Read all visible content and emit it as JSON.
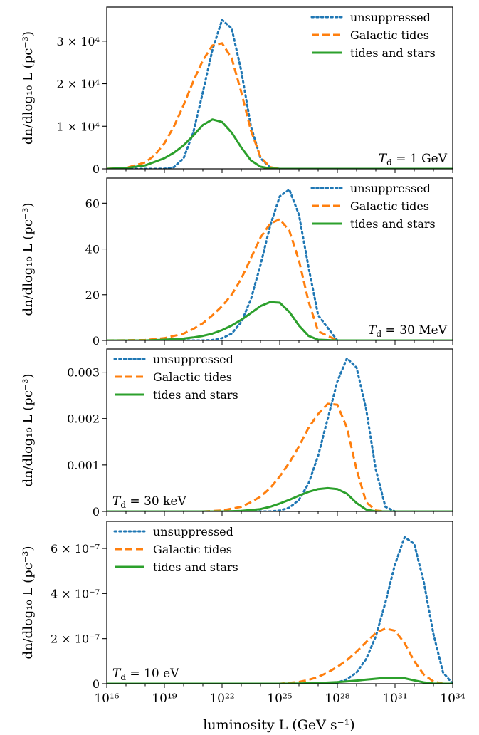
{
  "figure": {
    "xlabel": "luminosity L (GeV s⁻¹)",
    "xscale": "log",
    "xlim_log10": [
      16,
      34
    ],
    "x_ticks": [
      {
        "log10": 16,
        "label": "10¹⁶"
      },
      {
        "log10": 19,
        "label": "10¹⁹"
      },
      {
        "log10": 22,
        "label": "10²²"
      },
      {
        "log10": 25,
        "label": "10²⁵"
      },
      {
        "log10": 28,
        "label": "10²⁸"
      },
      {
        "log10": 31,
        "label": "10³¹"
      },
      {
        "log10": 34,
        "label": "10³⁴"
      }
    ],
    "series_styles": [
      {
        "name": "unsuppressed",
        "color": "#1f77b4",
        "style": "dotted"
      },
      {
        "name": "Galactic tides",
        "color": "#ff7f0e",
        "style": "dashed"
      },
      {
        "name": "tides and stars",
        "color": "#2ca02c",
        "style": "solid"
      }
    ]
  },
  "chart_data": [
    {
      "type": "line",
      "ylabel": "dn/dlog₁₀ L (pc⁻³)",
      "ylim": [
        0,
        38000
      ],
      "y_ticks": [
        {
          "value": 0,
          "label": "0"
        },
        {
          "value": 10000,
          "label": "1 × 10⁴"
        },
        {
          "value": 20000,
          "label": "2 × 10⁴"
        },
        {
          "value": 30000,
          "label": "3 × 10⁴"
        }
      ],
      "legend_position": "top-right",
      "annotation": "T_d = 1 GeV",
      "annotation_position": "bottom-right",
      "series": [
        {
          "name": "unsuppressed",
          "x_log10": [
            16,
            18,
            19,
            19.5,
            20,
            20.5,
            21,
            21.5,
            22,
            22.5,
            23,
            23.5,
            24,
            24.5,
            25,
            26,
            30,
            34
          ],
          "values": [
            0,
            0,
            20,
            400,
            2500,
            8500,
            18000,
            28000,
            35000,
            33000,
            23000,
            10000,
            2500,
            300,
            0,
            0,
            0,
            0
          ]
        },
        {
          "name": "Galactic tides",
          "x_log10": [
            16,
            17,
            18,
            18.5,
            19,
            19.5,
            20,
            20.5,
            21,
            21.5,
            22,
            22.5,
            23,
            23.5,
            24,
            24.5,
            25,
            26,
            30,
            34
          ],
          "values": [
            0,
            200,
            1500,
            3200,
            6000,
            10000,
            15000,
            20500,
            25500,
            29000,
            29500,
            26000,
            18000,
            9000,
            2800,
            400,
            0,
            0,
            0,
            0
          ]
        },
        {
          "name": "tides and stars",
          "x_log10": [
            16,
            17,
            18,
            19,
            19.5,
            20,
            20.5,
            21,
            21.5,
            22,
            22.5,
            23,
            23.5,
            24,
            24.5,
            25,
            26,
            30,
            34
          ],
          "values": [
            0,
            200,
            800,
            2500,
            3800,
            5500,
            7800,
            10300,
            11600,
            11000,
            8500,
            5000,
            2000,
            500,
            80,
            0,
            0,
            0,
            0
          ]
        }
      ]
    },
    {
      "type": "line",
      "ylabel": "dn/dlog₁₀ L (pc⁻³)",
      "ylim": [
        0,
        71
      ],
      "y_ticks": [
        {
          "value": 0,
          "label": "0"
        },
        {
          "value": 20,
          "label": "20"
        },
        {
          "value": 40,
          "label": "40"
        },
        {
          "value": 60,
          "label": "60"
        }
      ],
      "legend_position": "top-right",
      "annotation": "T_d = 30 MeV",
      "annotation_position": "bottom-right",
      "series": [
        {
          "name": "unsuppressed",
          "x_log10": [
            16,
            20,
            21,
            21.5,
            22,
            22.5,
            23,
            23.5,
            24,
            24.5,
            25,
            25.5,
            26,
            26.5,
            27,
            28,
            34
          ],
          "values": [
            0,
            0,
            0,
            0.2,
            1,
            3,
            8,
            18,
            33,
            50,
            63,
            66,
            55,
            32,
            11,
            0,
            0
          ]
        },
        {
          "name": "Galactic tides",
          "x_log10": [
            16,
            18,
            19,
            20,
            20.5,
            21,
            21.5,
            22,
            22.5,
            23,
            23.5,
            24,
            24.5,
            25,
            25.5,
            26,
            26.5,
            27,
            28,
            34
          ],
          "values": [
            0,
            0.2,
            1,
            3,
            5,
            7.5,
            11,
            15,
            20,
            27,
            36,
            45,
            51,
            53,
            48,
            35,
            17,
            4,
            0,
            0
          ]
        },
        {
          "name": "tides and stars",
          "x_log10": [
            16,
            18,
            19,
            20,
            20.5,
            21,
            21.5,
            22,
            22.5,
            23,
            23.5,
            24,
            24.5,
            25,
            25.5,
            26,
            26.5,
            27,
            28,
            34
          ],
          "values": [
            0,
            0,
            0.3,
            0.8,
            1.3,
            2,
            3,
            4.5,
            6.5,
            9,
            12,
            15,
            16.8,
            16.5,
            12.5,
            6.5,
            2,
            0.3,
            0,
            0
          ]
        }
      ]
    },
    {
      "type": "line",
      "ylabel": "dn/dlog₁₀ L (pc⁻³)",
      "ylim": [
        0,
        0.0035
      ],
      "y_ticks": [
        {
          "value": 0,
          "label": "0"
        },
        {
          "value": 0.001,
          "label": "0.001"
        },
        {
          "value": 0.002,
          "label": "0.002"
        },
        {
          "value": 0.003,
          "label": "0.003"
        }
      ],
      "legend_position": "top-left",
      "annotation": "T_d = 30 keV",
      "annotation_position": "bottom-left",
      "series": [
        {
          "name": "unsuppressed",
          "x_log10": [
            16,
            24.5,
            25,
            25.5,
            26,
            26.5,
            27,
            27.5,
            28,
            28.5,
            29,
            29.5,
            30,
            30.5,
            31,
            34
          ],
          "values": [
            0,
            0,
            2e-05,
            8e-05,
            0.00025,
            0.0006,
            0.0012,
            0.002,
            0.0028,
            0.0033,
            0.0031,
            0.0022,
            0.0009,
            0.0001,
            0,
            0
          ]
        },
        {
          "name": "Galactic tides",
          "x_log10": [
            16,
            21,
            22,
            23,
            23.5,
            24,
            24.5,
            25,
            25.5,
            26,
            26.5,
            27,
            27.5,
            28,
            28.5,
            29,
            29.5,
            30,
            30.5,
            34
          ],
          "values": [
            0,
            0,
            2e-05,
            0.0001,
            0.0002,
            0.00032,
            0.0005,
            0.00075,
            0.00105,
            0.0014,
            0.0018,
            0.0021,
            0.00232,
            0.0023,
            0.0018,
            0.0009,
            0.0002,
            2e-05,
            0,
            0
          ]
        },
        {
          "name": "tides and stars",
          "x_log10": [
            16,
            22,
            23,
            24,
            24.5,
            25,
            25.5,
            26,
            26.5,
            27,
            27.5,
            28,
            28.5,
            29,
            29.5,
            30,
            34
          ],
          "values": [
            0,
            0,
            1e-05,
            5e-05,
            0.0001,
            0.00017,
            0.00025,
            0.00034,
            0.00042,
            0.00048,
            0.0005,
            0.00048,
            0.00038,
            0.00018,
            4e-05,
            0,
            0
          ]
        }
      ]
    },
    {
      "type": "line",
      "ylabel": "dn/dlog₁₀ L (pc⁻³)",
      "ylim": [
        0,
        7.2e-07
      ],
      "y_ticks": [
        {
          "value": 0,
          "label": "0"
        },
        {
          "value": 2e-07,
          "label": "2 × 10⁻⁷"
        },
        {
          "value": 4e-07,
          "label": "4 × 10⁻⁷"
        },
        {
          "value": 6e-07,
          "label": "6 × 10⁻⁷"
        }
      ],
      "legend_position": "top-left",
      "annotation": "T_d = 10 eV",
      "annotation_position": "bottom-left",
      "series": [
        {
          "name": "unsuppressed",
          "x_log10": [
            16,
            27.5,
            28,
            28.5,
            29,
            29.5,
            30,
            30.5,
            31,
            31.5,
            32,
            32.5,
            33,
            33.5,
            34
          ],
          "values": [
            0,
            0,
            5e-09,
            2e-08,
            5e-08,
            1.1e-07,
            2.1e-07,
            3.6e-07,
            5.3e-07,
            6.5e-07,
            6.2e-07,
            4.5e-07,
            2.2e-07,
            5e-08,
            0
          ]
        },
        {
          "name": "Galactic tides",
          "x_log10": [
            16,
            25,
            26,
            26.5,
            27,
            27.5,
            28,
            28.5,
            29,
            29.5,
            30,
            30.5,
            31,
            31.5,
            32,
            32.5,
            33,
            33.5,
            34
          ],
          "values": [
            0,
            0,
            8e-09,
            1.7e-08,
            3e-08,
            5e-08,
            7.5e-08,
            1.05e-07,
            1.42e-07,
            1.85e-07,
            2.25e-07,
            2.45e-07,
            2.35e-07,
            1.8e-07,
            1e-07,
            4e-08,
            1e-08,
            0,
            0
          ]
        },
        {
          "name": "tides and stars",
          "x_log10": [
            16,
            25,
            26,
            27,
            28,
            28.5,
            29,
            29.5,
            30,
            30.5,
            31,
            31.5,
            32,
            32.5,
            33,
            33.5,
            34
          ],
          "values": [
            0,
            0,
            1e-09,
            3e-09,
            7e-09,
            1e-08,
            1.4e-08,
            1.8e-08,
            2.2e-08,
            2.6e-08,
            2.7e-08,
            2.4e-08,
            1.5e-08,
            6e-09,
            1e-09,
            0,
            0
          ]
        }
      ]
    }
  ]
}
